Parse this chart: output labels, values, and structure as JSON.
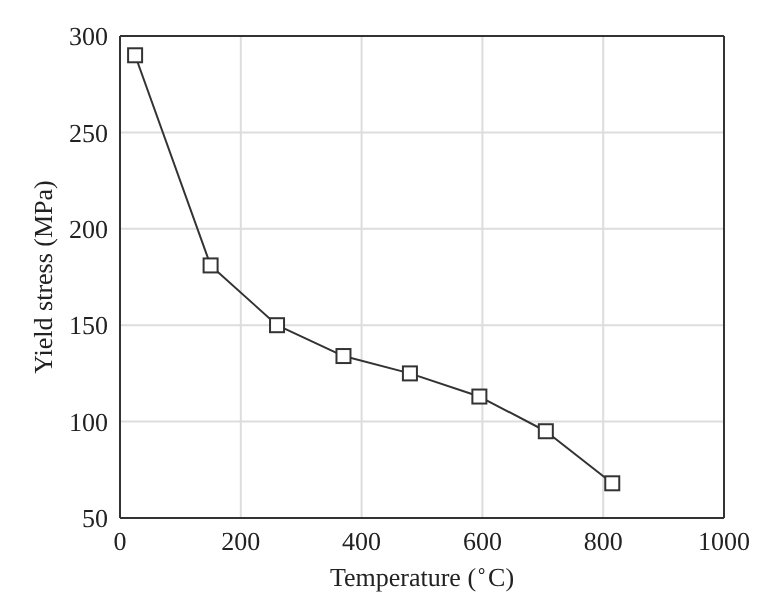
{
  "chart_data": {
    "type": "line",
    "xlabel": "Temperature ($^{∘}$C)",
    "ylabel": "Yield stress (MPa)",
    "x": [
      25,
      150,
      260,
      370,
      480,
      595,
      705,
      815
    ],
    "series": [
      {
        "color": "#333333",
        "values": [
          290,
          181,
          150,
          134,
          125,
          113,
          95,
          68
        ]
      }
    ],
    "xlim": [
      0,
      1000
    ],
    "xticks": [
      0,
      200,
      400,
      600,
      800,
      1000
    ],
    "ylim": [
      50,
      300
    ],
    "yticks": [
      50,
      100,
      150,
      200,
      250,
      300
    ],
    "grid": true,
    "marker": "square",
    "line_style": "solid"
  }
}
